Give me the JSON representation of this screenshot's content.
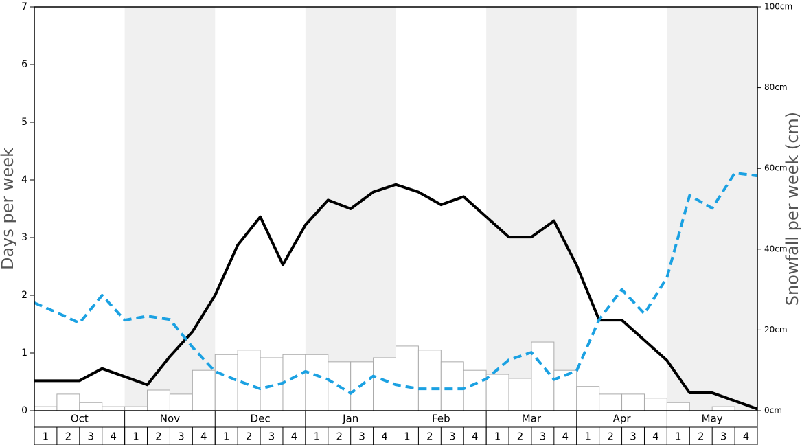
{
  "chart_data": {
    "type": "combo",
    "ylabel": "Days per week",
    "y2label": "Snowfall per week (cm)",
    "ylim": [
      0,
      7
    ],
    "yticks": [
      0,
      1,
      2,
      3,
      4,
      5,
      6,
      7
    ],
    "y2lim": [
      0,
      100
    ],
    "y2ticks": [
      {
        "value": 0,
        "label": "0cm"
      },
      {
        "value": 20,
        "label": "20cm"
      },
      {
        "value": 40,
        "label": "40cm"
      },
      {
        "value": 60,
        "label": "60cm"
      },
      {
        "value": 80,
        "label": "80cm"
      },
      {
        "value": 100,
        "label": "100cm"
      }
    ],
    "months": [
      "Oct",
      "Nov",
      "Dec",
      "Jan",
      "Feb",
      "Mar",
      "Apr",
      "May"
    ],
    "weeks": [
      "1",
      "2",
      "3",
      "4"
    ],
    "shaded_months": [
      1,
      3,
      5,
      7
    ],
    "series": [
      {
        "type": "bar",
        "axis": "y2",
        "color": "#ffffff",
        "values": [
          1,
          4.1,
          2,
          1,
          1,
          5.1,
          4.1,
          10,
          13.9,
          15,
          13.1,
          13.9,
          13.9,
          12.1,
          12.1,
          13.1,
          16,
          15,
          12.1,
          10,
          9,
          8,
          17,
          10,
          6,
          4.1,
          4.1,
          3.1,
          2,
          0,
          1,
          0
        ]
      },
      {
        "type": "line",
        "axis": "y",
        "color": "#000000",
        "dashed": false,
        "values": [
          0.52,
          0.52,
          0.52,
          0.73,
          0.59,
          0.45,
          0.94,
          1.37,
          2.0,
          2.87,
          3.36,
          2.53,
          3.22,
          3.65,
          3.5,
          3.79,
          3.92,
          3.79,
          3.57,
          3.71,
          3.36,
          3.01,
          3.01,
          3.29,
          2.52,
          1.57,
          1.57,
          1.22,
          0.87,
          0.31,
          0.31,
          0.17,
          0.03
        ]
      },
      {
        "type": "line",
        "axis": "y",
        "color": "#1ba1e2",
        "dashed": true,
        "values": [
          1.87,
          1.7,
          1.52,
          2.0,
          1.57,
          1.64,
          1.58,
          1.1,
          0.68,
          0.52,
          0.38,
          0.48,
          0.68,
          0.54,
          0.3,
          0.6,
          0.45,
          0.38,
          0.38,
          0.38,
          0.55,
          0.88,
          1.01,
          0.54,
          0.69,
          1.58,
          2.1,
          1.68,
          2.31,
          3.73,
          3.51,
          4.12,
          4.07
        ]
      }
    ]
  }
}
